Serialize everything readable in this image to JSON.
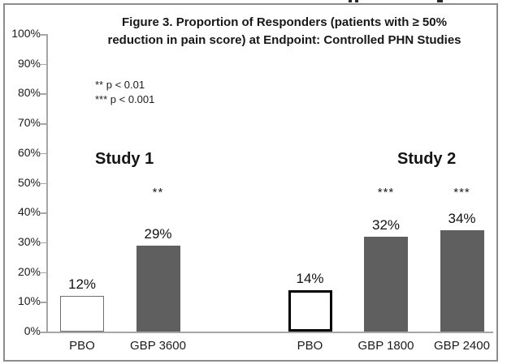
{
  "figure": {
    "kind": "document-figure",
    "border_color": "#8c8c8c",
    "background": "#ffffff"
  },
  "chart_data": {
    "type": "bar",
    "title": "Figure 3. Proportion of Responders (patients with ≥ 50% reduction in pain score) at Endpoint: Controlled PHN Studies",
    "title_lines": [
      "Figure 3. Proportion of Responders (patients with ≥ 50%",
      "reduction in pain score) at Endpoint: Controlled PHN Studies"
    ],
    "xlabel": "",
    "ylabel": "",
    "ylim": [
      0,
      100
    ],
    "ytick_step": 10,
    "yticks": [
      "0%",
      "10%",
      "20%",
      "30%",
      "40%",
      "50%",
      "60%",
      "70%",
      "80%",
      "90%",
      "100%"
    ],
    "grid": false,
    "legend_position": "none",
    "annotations": [
      "** p < 0.01",
      "*** p < 0.001"
    ],
    "colors": {
      "active_fill": "#5f5f5f",
      "placebo_fill": "#ffffff",
      "axis": "#a6a6a6"
    },
    "groups": [
      {
        "name": "Study 1",
        "bars": [
          {
            "label": "PBO",
            "value": 12,
            "value_label": "12%",
            "type": "placebo",
            "significance": ""
          },
          {
            "label": "GBP 3600",
            "value": 29,
            "value_label": "29%",
            "type": "active",
            "significance": "**"
          }
        ]
      },
      {
        "name": "Study 2",
        "bars": [
          {
            "label": "PBO",
            "value": 14,
            "value_label": "14%",
            "type": "placebo",
            "significance": ""
          },
          {
            "label": "GBP 1800",
            "value": 32,
            "value_label": "32%",
            "type": "active",
            "significance": "***"
          },
          {
            "label": "GBP 2400",
            "value": 34,
            "value_label": "34%",
            "type": "active",
            "significance": "***"
          }
        ]
      }
    ]
  }
}
